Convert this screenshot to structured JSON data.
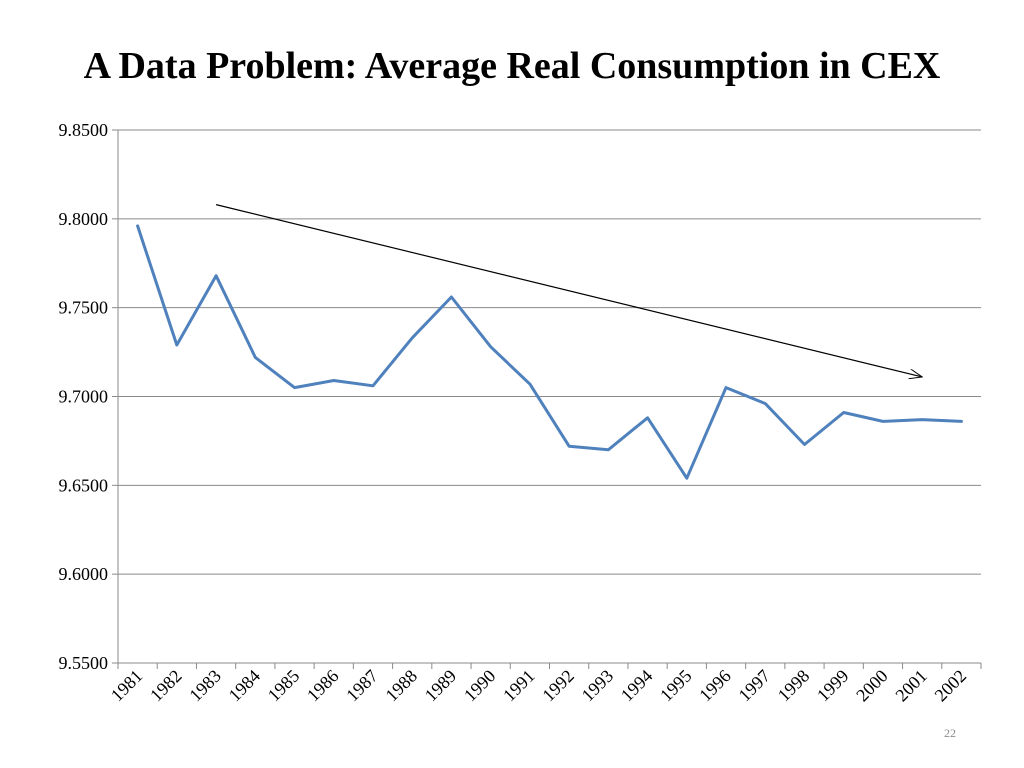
{
  "slide": {
    "title": "A Data Problem:  Average Real Consumption in CEX",
    "page_number": "22"
  },
  "chart_data": {
    "type": "line",
    "title": "",
    "xlabel": "",
    "ylabel": "",
    "categories": [
      "1981",
      "1982",
      "1983",
      "1984",
      "1985",
      "1986",
      "1987",
      "1988",
      "1989",
      "1990",
      "1991",
      "1992",
      "1993",
      "1994",
      "1995",
      "1996",
      "1997",
      "1998",
      "1999",
      "2000",
      "2001",
      "2002"
    ],
    "series": [
      {
        "values": [
          9.796,
          9.729,
          9.768,
          9.722,
          9.705,
          9.709,
          9.706,
          9.733,
          9.756,
          9.728,
          9.707,
          9.672,
          9.67,
          9.688,
          9.654,
          9.705,
          9.696,
          9.673,
          9.691,
          9.686,
          9.687,
          9.686
        ],
        "color": "#4f81bd"
      }
    ],
    "ylim": [
      9.55,
      9.85
    ],
    "yticks": [
      "9.5500",
      "9.6000",
      "9.6500",
      "9.7000",
      "9.7500",
      "9.8000",
      "9.8500"
    ],
    "gridlines": true,
    "legend": "none",
    "annotations": [
      {
        "type": "arrow",
        "from": {
          "x": "1983",
          "y": 9.808
        },
        "to": {
          "x": "2001",
          "y": 9.711
        },
        "color": "#000000"
      }
    ]
  }
}
